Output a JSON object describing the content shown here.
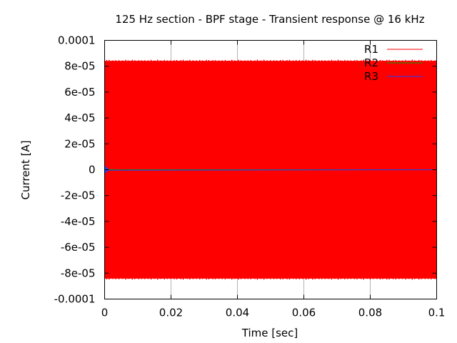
{
  "chart_data": {
    "type": "line",
    "title": "125 Hz section - BPF stage - Transient response @ 16 kHz",
    "xlabel": "Time [sec]",
    "ylabel": "Current [A]",
    "xlim": [
      0,
      0.1
    ],
    "ylim": [
      -0.0001,
      0.0001
    ],
    "x_ticks": [
      0,
      0.02,
      0.04,
      0.06,
      0.08,
      0.1
    ],
    "x_tick_labels": [
      "0",
      "0.02",
      "0.04",
      "0.06",
      "0.08",
      "0.1"
    ],
    "y_ticks": [
      0.0001,
      8e-05,
      6e-05,
      4e-05,
      2e-05,
      0,
      -2e-05,
      -4e-05,
      -6e-05,
      -8e-05,
      -0.0001
    ],
    "y_tick_labels": [
      "0.0001",
      "8e-05",
      "6e-05",
      "4e-05",
      "2e-05",
      "0",
      "-2e-05",
      "-4e-05",
      "-6e-05",
      "-8e-05",
      "-0.0001"
    ],
    "grid": true,
    "legend_position": "top-right",
    "series": [
      {
        "name": "R1",
        "color": "#ff0000",
        "amplitude": 8.4e-05,
        "frequency_hz": 16000,
        "offset": 0
      },
      {
        "name": "R2",
        "color": "#00a000",
        "amplitude": 3e-07,
        "offset": 0
      },
      {
        "name": "R3",
        "color": "#2040ff",
        "amplitude": 3e-06,
        "decay_end": 0.001,
        "offset": 0
      }
    ]
  }
}
